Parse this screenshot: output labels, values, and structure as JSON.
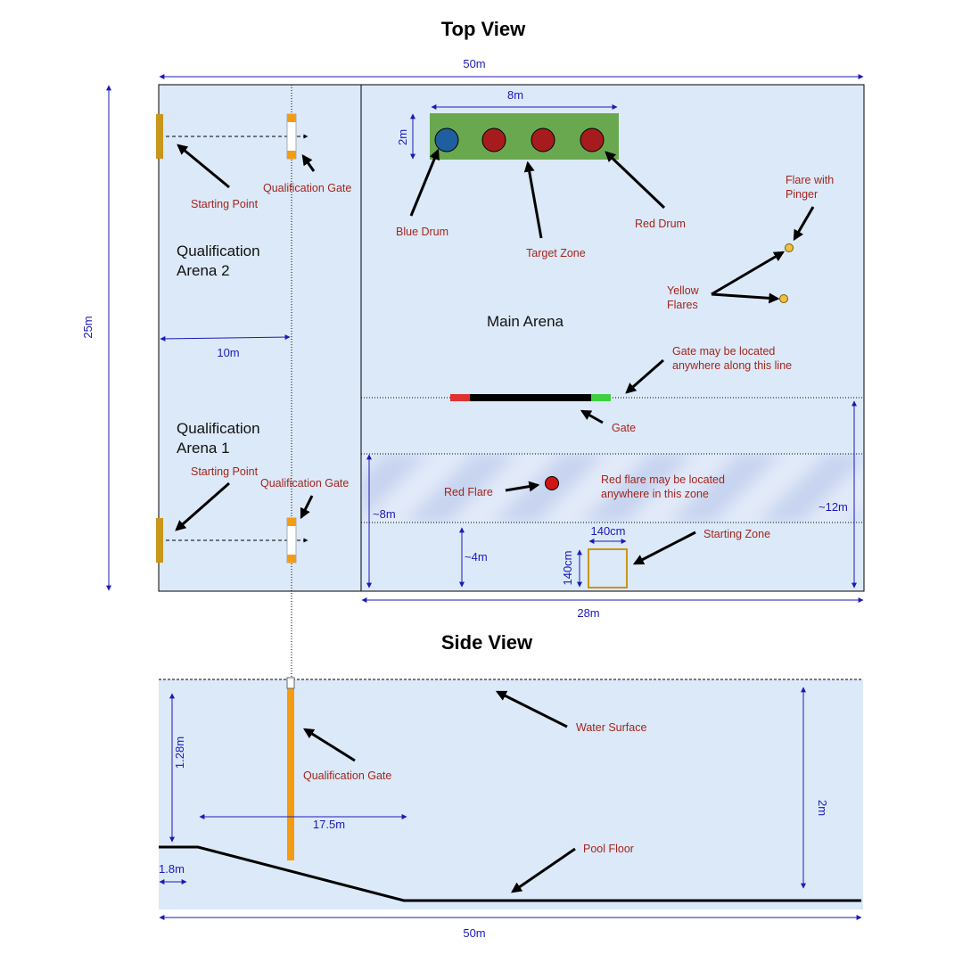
{
  "top_view": {
    "title": "Top View",
    "dims": {
      "width_total": "50m",
      "height_total": "25m",
      "qual_width": "10m",
      "target_width": "8m",
      "target_height": "2m",
      "main_width": "28m",
      "zone_left": "~8m",
      "zone_right": "~12m",
      "start_offset": "~4m",
      "start_w": "140cm",
      "start_h": "140cm"
    },
    "labels": {
      "starting_point_top": "Starting Point",
      "starting_point_bottom": "Starting Point",
      "qual_gate_top": "Qualification Gate",
      "qual_gate_bottom": "Qualification Gate",
      "qual_arena_2_line1": "Qualification",
      "qual_arena_2_line2": "Arena 2",
      "qual_arena_1_line1": "Qualification",
      "qual_arena_1_line2": "Arena 1",
      "blue_drum": "Blue Drum",
      "target_zone": "Target Zone",
      "red_drum": "Red Drum",
      "flare_pinger_line1": "Flare with",
      "flare_pinger_line2": "Pinger",
      "yellow_flares_line1": "Yellow",
      "yellow_flares_line2": "Flares",
      "main_arena": "Main Arena",
      "gate_note_line1": "Gate may be located",
      "gate_note_line2": "anywhere along this line",
      "gate": "Gate",
      "red_flare": "Red Flare",
      "red_flare_note_line1": "Red flare may be located",
      "red_flare_note_line2": "anywhere in this zone",
      "starting_zone": "Starting Zone"
    }
  },
  "side_view": {
    "title": "Side View",
    "labels": {
      "water_surface": "Water Surface",
      "qual_gate": "Qualification Gate",
      "pool_floor": "Pool Floor"
    },
    "dims": {
      "gate_depth": "1.28m",
      "slope_len": "17.5m",
      "shallow": "1.8m",
      "depth": "2m",
      "length": "50m"
    }
  },
  "colors": {
    "water": "#dce9f8",
    "target_zone": "#6aa84f",
    "red_drum": "#a61c1c",
    "blue_drum": "#1f5fa0",
    "gate_orange": "#f39c12",
    "start_gold": "#c8961b",
    "dim_blue": "#1a1ab8",
    "label_red": "#a3261d"
  }
}
